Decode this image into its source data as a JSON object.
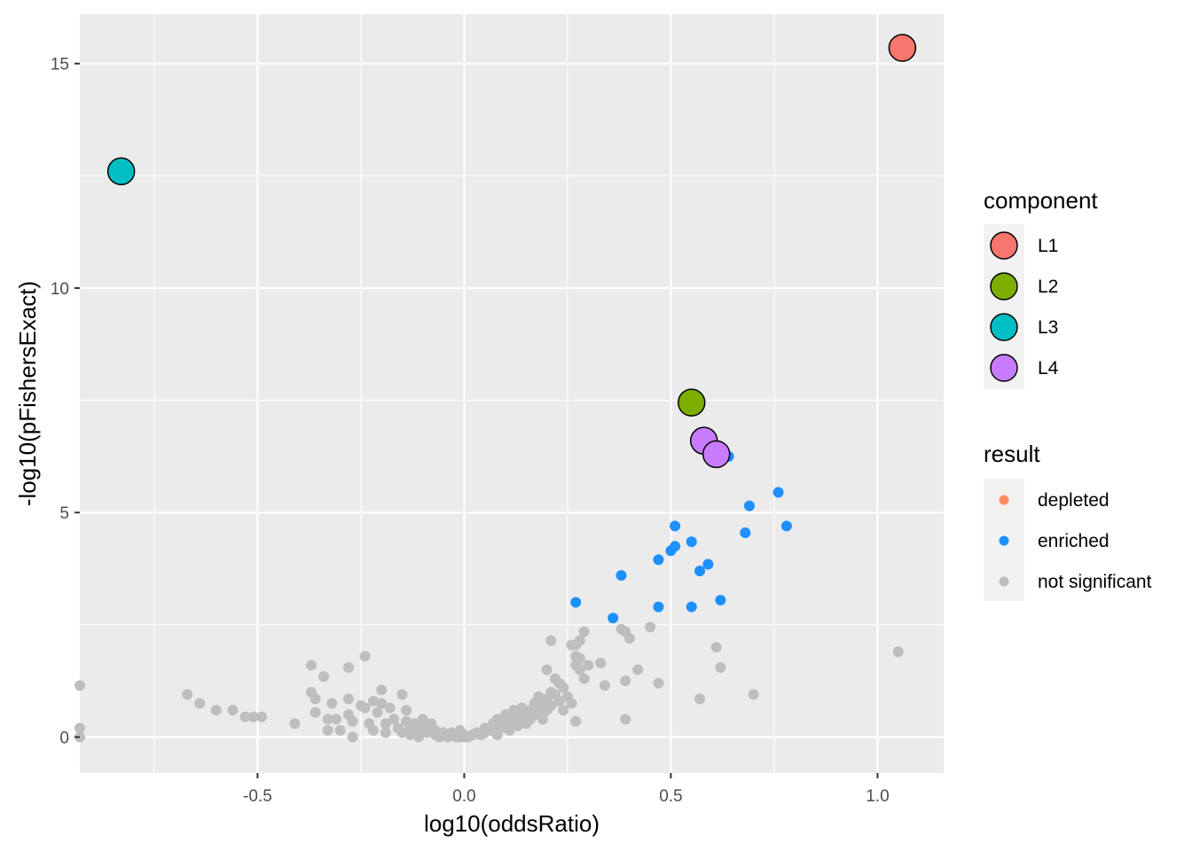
{
  "chart_data": {
    "type": "scatter",
    "xlabel": "log10(oddsRatio)",
    "ylabel": "-log10(pFishersExact)",
    "xlim": [
      -0.93,
      1.16
    ],
    "ylim": [
      -0.8,
      16.1
    ],
    "x_ticks": [
      -0.5,
      0.0,
      0.5,
      1.0
    ],
    "x_tick_labels": [
      "-0.5",
      "0.0",
      "0.5",
      "1.0"
    ],
    "y_ticks": [
      0,
      5,
      10,
      15
    ],
    "y_tick_labels": [
      "0",
      "5",
      "10",
      "15"
    ],
    "grid": true,
    "background": "#ebebeb",
    "legend_position": "right",
    "legends": {
      "component": {
        "title": "component",
        "items": [
          {
            "label": "L1",
            "color": "#f8766d"
          },
          {
            "label": "L2",
            "color": "#7cae00"
          },
          {
            "label": "L3",
            "color": "#00bfc4"
          },
          {
            "label": "L4",
            "color": "#c77cff"
          }
        ]
      },
      "result": {
        "title": "result",
        "items": [
          {
            "label": "depleted",
            "color": "#fc8d62"
          },
          {
            "label": "enriched",
            "color": "#1e90ff"
          },
          {
            "label": "not significant",
            "color": "#bebebe"
          }
        ]
      }
    },
    "series": [
      {
        "name": "not significant",
        "color": "#bebebe",
        "points": [
          [
            -0.93,
            1.15
          ],
          [
            -0.93,
            0.2
          ],
          [
            -0.93,
            0.0
          ],
          [
            -0.67,
            0.95
          ],
          [
            -0.64,
            0.75
          ],
          [
            -0.6,
            0.6
          ],
          [
            -0.56,
            0.6
          ],
          [
            -0.53,
            0.45
          ],
          [
            -0.51,
            0.45
          ],
          [
            -0.49,
            0.45
          ],
          [
            -0.41,
            0.3
          ],
          [
            -0.37,
            1.6
          ],
          [
            -0.37,
            1.0
          ],
          [
            -0.36,
            0.85
          ],
          [
            -0.36,
            0.55
          ],
          [
            -0.34,
            1.35
          ],
          [
            -0.33,
            0.4
          ],
          [
            -0.33,
            0.15
          ],
          [
            -0.32,
            0.75
          ],
          [
            -0.31,
            0.4
          ],
          [
            -0.3,
            0.15
          ],
          [
            -0.28,
            1.55
          ],
          [
            -0.28,
            0.85
          ],
          [
            -0.28,
            0.5
          ],
          [
            -0.27,
            0.35
          ],
          [
            -0.27,
            0.0
          ],
          [
            -0.25,
            0.7
          ],
          [
            -0.24,
            1.8
          ],
          [
            -0.24,
            0.65
          ],
          [
            -0.23,
            0.3
          ],
          [
            -0.22,
            0.8
          ],
          [
            -0.22,
            0.15
          ],
          [
            -0.21,
            0.55
          ],
          [
            -0.2,
            1.05
          ],
          [
            -0.2,
            0.75
          ],
          [
            -0.19,
            0.3
          ],
          [
            -0.19,
            0.1
          ],
          [
            -0.18,
            0.65
          ],
          [
            -0.17,
            0.4
          ],
          [
            -0.16,
            0.2
          ],
          [
            -0.15,
            0.1
          ],
          [
            -0.15,
            0.95
          ],
          [
            -0.14,
            0.6
          ],
          [
            -0.14,
            0.35
          ],
          [
            -0.13,
            0.2
          ],
          [
            -0.13,
            0.05
          ],
          [
            -0.12,
            0.3
          ],
          [
            -0.11,
            0.15
          ],
          [
            -0.11,
            0.0
          ],
          [
            -0.1,
            0.4
          ],
          [
            -0.1,
            0.2
          ],
          [
            -0.09,
            0.1
          ],
          [
            -0.08,
            0.3
          ],
          [
            -0.07,
            0.05
          ],
          [
            -0.07,
            0.15
          ],
          [
            -0.06,
            0.0
          ],
          [
            -0.05,
            0.1
          ],
          [
            -0.05,
            0.05
          ],
          [
            -0.04,
            0.0
          ],
          [
            -0.03,
            0.1
          ],
          [
            -0.02,
            0.0
          ],
          [
            -0.01,
            0.0
          ],
          [
            -0.01,
            0.15
          ],
          [
            0.0,
            0.05
          ],
          [
            0.0,
            0.0
          ],
          [
            0.01,
            0.0
          ],
          [
            0.02,
            0.05
          ],
          [
            0.03,
            0.1
          ],
          [
            0.04,
            0.05
          ],
          [
            0.05,
            0.1
          ],
          [
            0.05,
            0.2
          ],
          [
            0.06,
            0.15
          ],
          [
            0.07,
            0.3
          ],
          [
            0.07,
            0.15
          ],
          [
            0.08,
            0.05
          ],
          [
            0.08,
            0.4
          ],
          [
            0.09,
            0.25
          ],
          [
            0.09,
            0.35
          ],
          [
            0.1,
            0.2
          ],
          [
            0.1,
            0.5
          ],
          [
            0.11,
            0.3
          ],
          [
            0.11,
            0.15
          ],
          [
            0.12,
            0.6
          ],
          [
            0.12,
            0.4
          ],
          [
            0.13,
            0.25
          ],
          [
            0.13,
            0.55
          ],
          [
            0.14,
            0.35
          ],
          [
            0.14,
            0.65
          ],
          [
            0.15,
            0.45
          ],
          [
            0.15,
            0.3
          ],
          [
            0.16,
            0.6
          ],
          [
            0.16,
            0.4
          ],
          [
            0.17,
            0.75
          ],
          [
            0.17,
            0.5
          ],
          [
            0.18,
            0.9
          ],
          [
            0.18,
            0.55
          ],
          [
            0.19,
            0.4
          ],
          [
            0.19,
            0.75
          ],
          [
            0.2,
            1.5
          ],
          [
            0.2,
            0.85
          ],
          [
            0.2,
            0.6
          ],
          [
            0.21,
            2.15
          ],
          [
            0.21,
            1.0
          ],
          [
            0.21,
            0.7
          ],
          [
            0.22,
            1.3
          ],
          [
            0.22,
            0.95
          ],
          [
            0.23,
            1.2
          ],
          [
            0.23,
            0.8
          ],
          [
            0.24,
            1.1
          ],
          [
            0.24,
            0.6
          ],
          [
            0.25,
            0.9
          ],
          [
            0.26,
            2.05
          ],
          [
            0.26,
            0.75
          ],
          [
            0.27,
            2.05
          ],
          [
            0.27,
            1.8
          ],
          [
            0.27,
            1.6
          ],
          [
            0.27,
            0.35
          ],
          [
            0.28,
            2.15
          ],
          [
            0.28,
            1.75
          ],
          [
            0.28,
            1.5
          ],
          [
            0.29,
            1.3
          ],
          [
            0.29,
            2.35
          ],
          [
            0.3,
            1.6
          ],
          [
            0.33,
            1.65
          ],
          [
            0.34,
            1.15
          ],
          [
            0.38,
            2.4
          ],
          [
            0.39,
            2.35
          ],
          [
            0.39,
            1.25
          ],
          [
            0.39,
            0.4
          ],
          [
            0.4,
            2.2
          ],
          [
            0.42,
            1.5
          ],
          [
            0.45,
            2.45
          ],
          [
            0.47,
            1.2
          ],
          [
            0.57,
            0.85
          ],
          [
            0.61,
            2.0
          ],
          [
            0.62,
            1.55
          ],
          [
            0.7,
            0.95
          ],
          [
            1.05,
            1.9
          ]
        ]
      },
      {
        "name": "enriched",
        "color": "#1e90ff",
        "points": [
          [
            0.27,
            3.0
          ],
          [
            0.36,
            2.65
          ],
          [
            0.38,
            3.6
          ],
          [
            0.47,
            3.95
          ],
          [
            0.47,
            2.9
          ],
          [
            0.5,
            4.15
          ],
          [
            0.51,
            4.25
          ],
          [
            0.51,
            4.7
          ],
          [
            0.55,
            4.35
          ],
          [
            0.55,
            2.9
          ],
          [
            0.57,
            3.7
          ],
          [
            0.59,
            3.85
          ],
          [
            0.62,
            3.05
          ],
          [
            0.64,
            6.25
          ],
          [
            0.68,
            4.55
          ],
          [
            0.69,
            5.15
          ],
          [
            0.76,
            5.45
          ],
          [
            0.78,
            4.7
          ]
        ]
      },
      {
        "name": "L1",
        "color": "#f8766d",
        "points": [
          [
            1.06,
            15.35
          ]
        ]
      },
      {
        "name": "L2",
        "color": "#7cae00",
        "points": [
          [
            0.55,
            7.45
          ]
        ]
      },
      {
        "name": "L3",
        "color": "#00bfc4",
        "points": [
          [
            -0.83,
            12.6
          ]
        ]
      },
      {
        "name": "L4",
        "color": "#c77cff",
        "points": [
          [
            0.58,
            6.6
          ],
          [
            0.61,
            6.3
          ]
        ]
      }
    ]
  }
}
